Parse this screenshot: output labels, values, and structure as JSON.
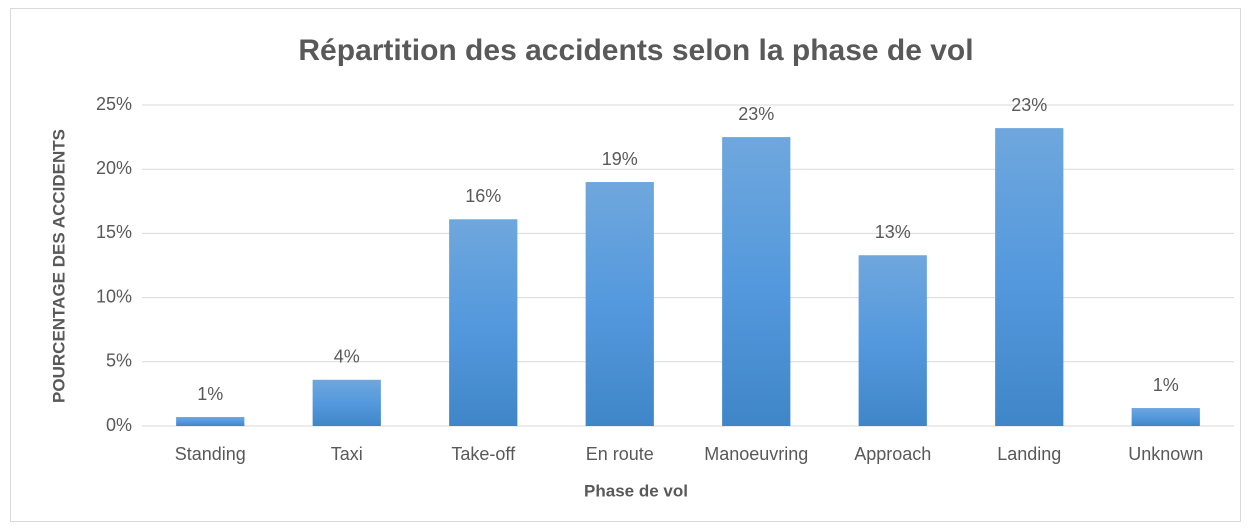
{
  "chart_data": {
    "type": "bar",
    "title": "Répartition des accidents selon la phase de vol",
    "x_label": "Phase de vol",
    "y_label": "POURCENTAGE DES ACCIDENTS",
    "categories": [
      "Standing",
      "Taxi",
      "Take-off",
      "En route",
      "Manoeuvring",
      "Approach",
      "Landing",
      "Unknown"
    ],
    "values": [
      0.7,
      3.6,
      16.1,
      19.0,
      22.5,
      13.3,
      23.2,
      1.4
    ],
    "value_labels": [
      "1%",
      "4%",
      "16%",
      "19%",
      "23%",
      "13%",
      "23%",
      "1%"
    ],
    "color": "#5b9bd5",
    "ylim": [
      0,
      25
    ],
    "yticks": [
      {
        "value": 0,
        "label": "0%"
      },
      {
        "value": 5,
        "label": "5%"
      },
      {
        "value": 10,
        "label": "10%"
      },
      {
        "value": 15,
        "label": "15%"
      },
      {
        "value": 20,
        "label": "20%"
      },
      {
        "value": 25,
        "label": "25%"
      }
    ],
    "grid": true
  }
}
